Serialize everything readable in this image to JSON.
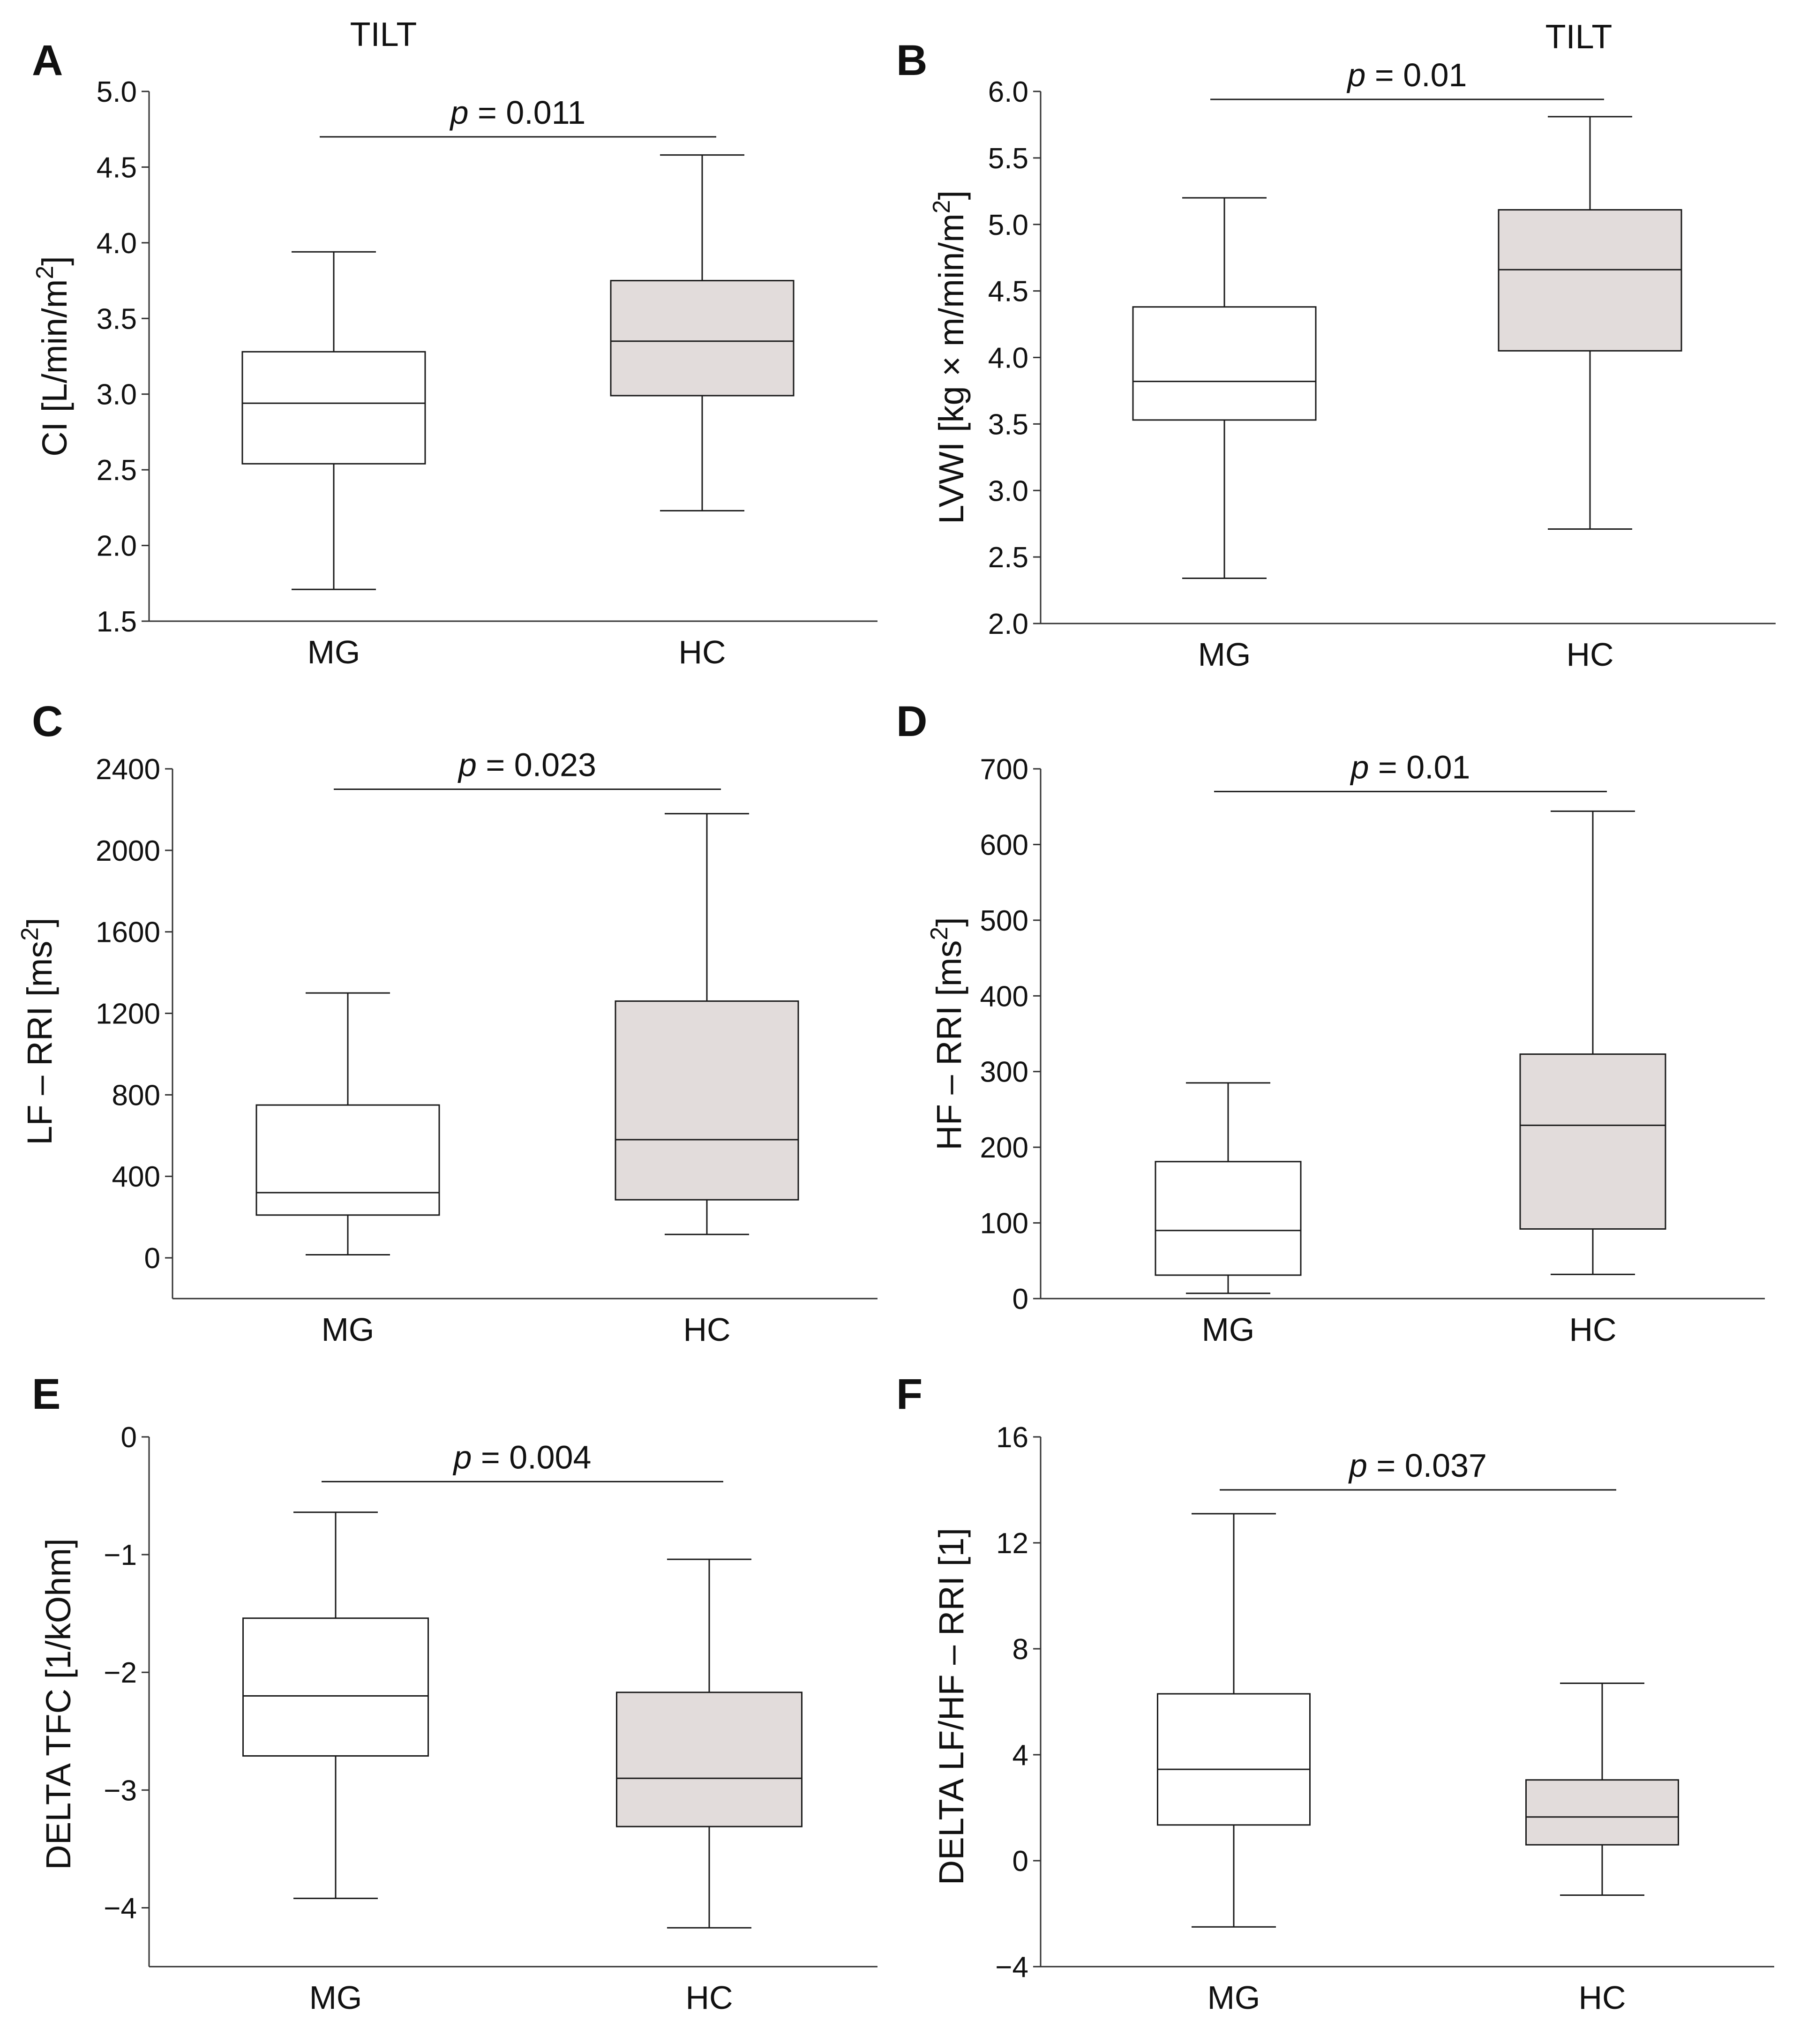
{
  "figure": {
    "panels": [
      "A",
      "B",
      "C",
      "D",
      "E",
      "F"
    ]
  },
  "colors": {
    "mg_box": "#ffffff",
    "hc_box": "#e2dcdb",
    "line": "#1a1a1a"
  },
  "chart_data": [
    {
      "panel": "A",
      "type": "box",
      "title": "TILT",
      "ylabel": "CI [L/min/m²]",
      "ylim": [
        1.5,
        5.0
      ],
      "yticks": [
        1.5,
        2.0,
        2.5,
        3.0,
        3.5,
        4.0,
        4.5,
        5.0
      ],
      "ytick_labels": [
        "1.5",
        "2.0",
        "2.5",
        "3.0",
        "3.5",
        "4.0",
        "4.5",
        "5.0"
      ],
      "categories": [
        "MG",
        "HC"
      ],
      "boxes": [
        {
          "name": "MG",
          "min": 1.71,
          "q1": 2.54,
          "median": 2.94,
          "q3": 3.28,
          "max": 3.94
        },
        {
          "name": "HC",
          "min": 2.23,
          "q1": 2.99,
          "median": 3.35,
          "q3": 3.75,
          "max": 4.58
        }
      ],
      "pvalue": {
        "label": "p",
        "text": " = 0.011",
        "between": [
          "MG",
          "HC"
        ],
        "y": 4.7
      }
    },
    {
      "panel": "B",
      "type": "box",
      "title": "TILT",
      "ylabel": "LVWI [kg × m/min/m²]",
      "ylim": [
        2.0,
        6.0
      ],
      "yticks": [
        2.0,
        2.5,
        3.0,
        3.5,
        4.0,
        4.5,
        5.0,
        5.5,
        6.0
      ],
      "ytick_labels": [
        "2.0",
        "2.5",
        "3.0",
        "3.5",
        "4.0",
        "4.5",
        "5.0",
        "5.5",
        "6.0"
      ],
      "categories": [
        "MG",
        "HC"
      ],
      "boxes": [
        {
          "name": "MG",
          "min": 2.34,
          "q1": 3.53,
          "median": 3.82,
          "q3": 4.38,
          "max": 5.2
        },
        {
          "name": "HC",
          "min": 2.71,
          "q1": 4.05,
          "median": 4.66,
          "q3": 5.11,
          "max": 5.81
        }
      ],
      "pvalue": {
        "label": "p",
        "text": " = 0.01",
        "between": [
          "MG",
          "HC"
        ],
        "y": 5.94
      }
    },
    {
      "panel": "C",
      "type": "box",
      "title": "",
      "ylabel": "LF – RRI [ms²]",
      "ylim": [
        -200,
        2400
      ],
      "yticks": [
        0,
        400,
        800,
        1200,
        1600,
        2000,
        2400
      ],
      "ytick_labels": [
        "0",
        "400",
        "800",
        "1200",
        "1600",
        "2000",
        "2400"
      ],
      "categories": [
        "MG",
        "HC"
      ],
      "boxes": [
        {
          "name": "MG",
          "min": 15,
          "q1": 210,
          "median": 320,
          "q3": 750,
          "max": 1300
        },
        {
          "name": "HC",
          "min": 115,
          "q1": 285,
          "median": 580,
          "q3": 1260,
          "max": 2180
        }
      ],
      "pvalue": {
        "label": "p",
        "text": " = 0.023",
        "between": [
          "MG",
          "HC"
        ],
        "y": 2300
      }
    },
    {
      "panel": "D",
      "type": "box",
      "title": "",
      "ylabel": "HF – RRI [ms²]",
      "ylim": [
        0,
        700
      ],
      "yticks": [
        0,
        100,
        200,
        300,
        400,
        500,
        600,
        700
      ],
      "ytick_labels": [
        "0",
        "100",
        "200",
        "300",
        "400",
        "500",
        "600",
        "700"
      ],
      "categories": [
        "MG",
        "HC"
      ],
      "boxes": [
        {
          "name": "MG",
          "min": 7,
          "q1": 31,
          "median": 90,
          "q3": 181,
          "max": 285
        },
        {
          "name": "HC",
          "min": 32,
          "q1": 92,
          "median": 229,
          "q3": 323,
          "max": 644
        }
      ],
      "pvalue": {
        "label": "p",
        "text": " = 0.01",
        "between": [
          "MG",
          "HC"
        ],
        "y": 670
      }
    },
    {
      "panel": "E",
      "type": "box",
      "title": "",
      "ylabel": "DELTA TFC [1/kOhm]",
      "ylim": [
        -4.5,
        0
      ],
      "yticks": [
        -4,
        -3,
        -2,
        -1,
        0
      ],
      "ytick_labels": [
        "−4",
        "−3",
        "−2",
        "−1",
        "0"
      ],
      "categories": [
        "MG",
        "HC"
      ],
      "boxes": [
        {
          "name": "MG",
          "min": -3.92,
          "q1": -2.71,
          "median": -2.2,
          "q3": -1.54,
          "max": -0.64
        },
        {
          "name": "HC",
          "min": -4.17,
          "q1": -3.31,
          "median": -2.9,
          "q3": -2.17,
          "max": -1.04
        }
      ],
      "pvalue": {
        "label": "p",
        "text": " = 0.004",
        "between": [
          "MG",
          "HC"
        ],
        "y": -0.38
      }
    },
    {
      "panel": "F",
      "type": "box",
      "title": "",
      "ylabel": "DELTA LF/HF – RRI [1]",
      "ylim": [
        -4,
        16
      ],
      "yticks": [
        -4,
        0,
        4,
        8,
        12,
        16
      ],
      "ytick_labels": [
        "−4",
        "0",
        "4",
        "8",
        "12",
        "16"
      ],
      "categories": [
        "MG",
        "HC"
      ],
      "boxes": [
        {
          "name": "MG",
          "min": -2.5,
          "q1": 1.35,
          "median": 3.45,
          "q3": 6.3,
          "max": 13.1
        },
        {
          "name": "HC",
          "min": -1.3,
          "q1": 0.6,
          "median": 1.65,
          "q3": 3.05,
          "max": 6.7
        }
      ],
      "pvalue": {
        "label": "p",
        "text": " = 0.037",
        "between": [
          "MG",
          "HC"
        ],
        "y": 14.0
      }
    }
  ]
}
